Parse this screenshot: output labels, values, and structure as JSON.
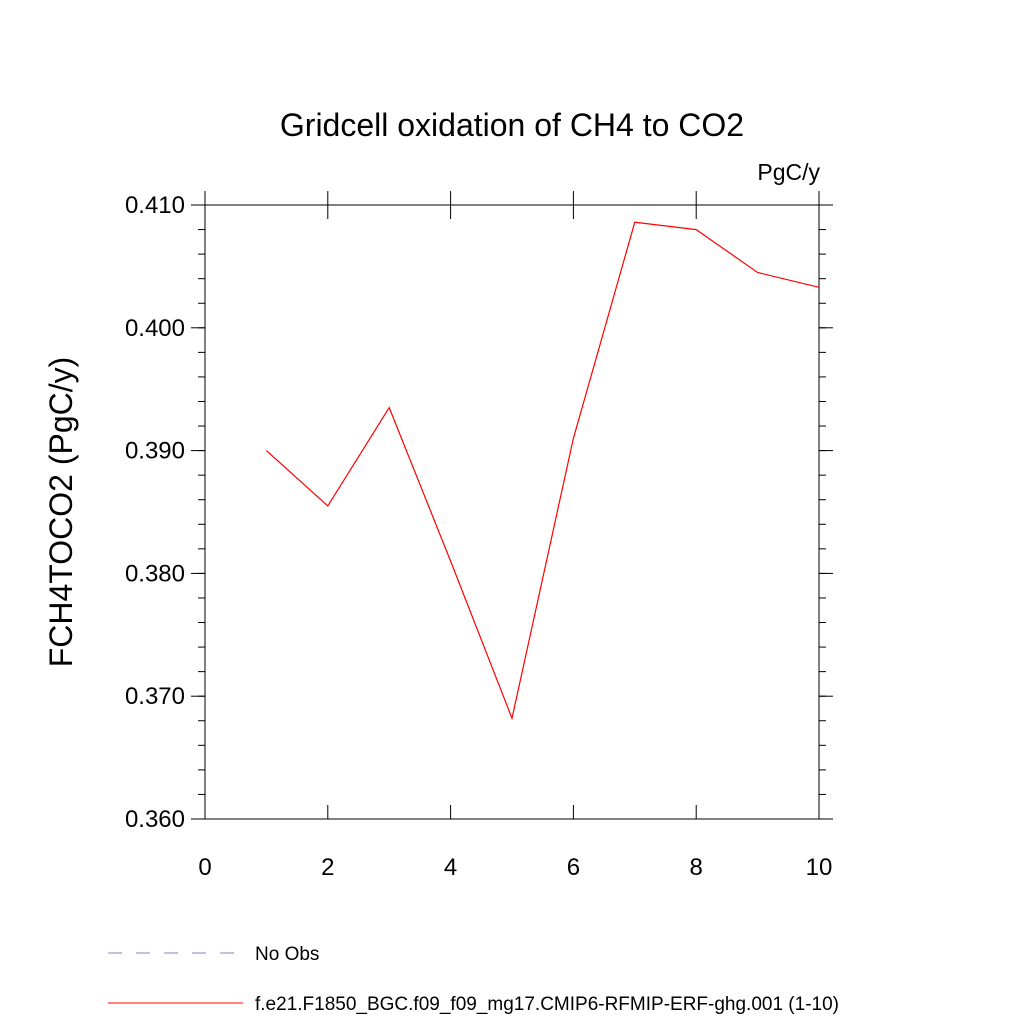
{
  "chart_data": {
    "type": "line",
    "title": "Gridcell oxidation of CH4 to CO2",
    "units": "PgC/y",
    "xlabel": "",
    "ylabel": "FCH4TOCO2  (PgC/y)",
    "xlim": [
      0,
      10
    ],
    "ylim": [
      0.36,
      0.41
    ],
    "xticks": [
      0,
      2,
      4,
      6,
      8,
      10
    ],
    "xtick_labels": [
      "0",
      "2",
      "4",
      "6",
      "8",
      "10"
    ],
    "yticks": [
      0.36,
      0.37,
      0.38,
      0.39,
      0.4,
      0.41
    ],
    "ytick_labels": [
      "0.360",
      "0.370",
      "0.380",
      "0.390",
      "0.400",
      "0.410"
    ],
    "grid": false,
    "series": [
      {
        "name": "f.e21.F1850_BGC.f09_f09_mg17.CMIP6-RFMIP-ERF-ghg.001 (1-10)",
        "color": "#ff0000",
        "style": "solid",
        "x": [
          1,
          2,
          3,
          4,
          5,
          6,
          7,
          8,
          9,
          10
        ],
        "y": [
          0.39,
          0.3855,
          0.3935,
          0.381,
          0.3682,
          0.391,
          0.4086,
          0.408,
          0.4045,
          0.4033
        ]
      }
    ],
    "legend": [
      {
        "label": "No Obs",
        "color": "#8a7fc0",
        "style": "dashed"
      },
      {
        "label": "f.e21.F1850_BGC.f09_f09_mg17.CMIP6-RFMIP-ERF-ghg.001 (1-10)",
        "color": "#ff0000",
        "style": "solid"
      }
    ],
    "legend_position": "bottom-left"
  }
}
